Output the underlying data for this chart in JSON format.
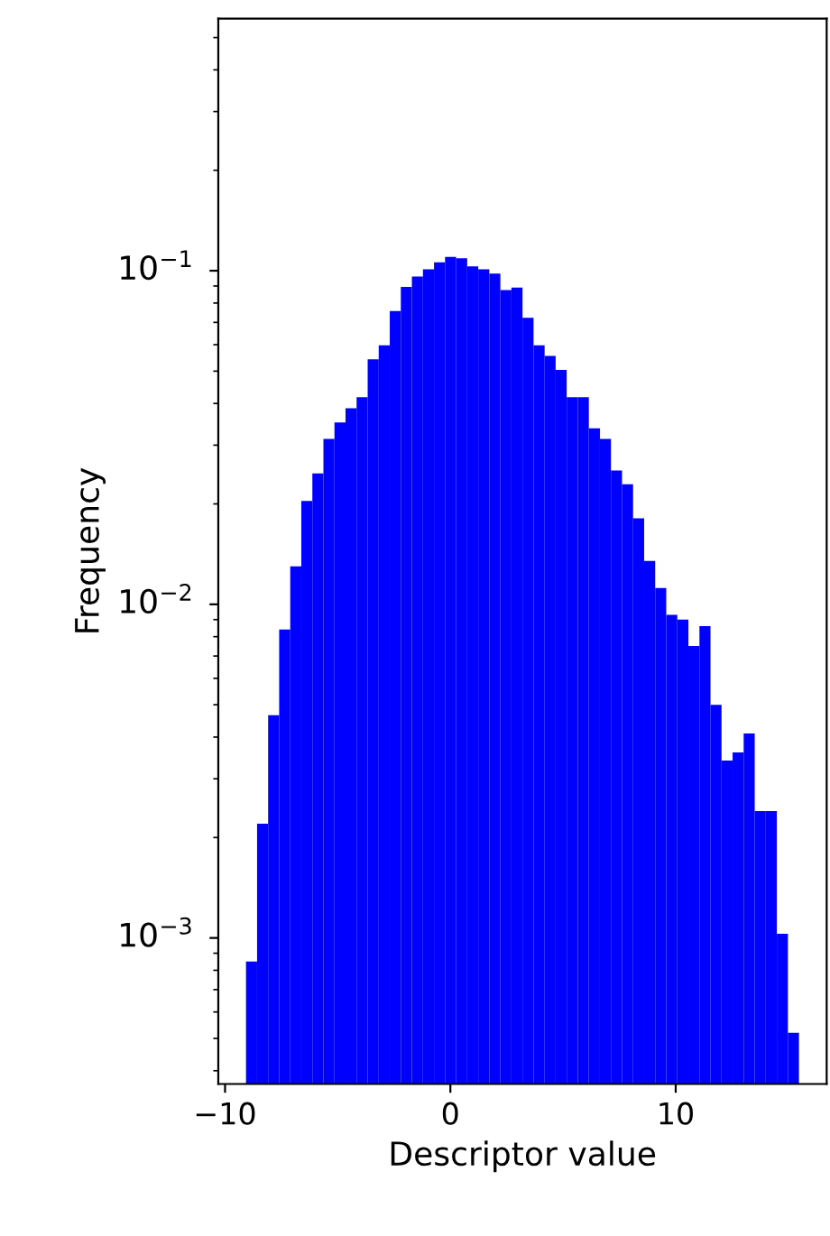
{
  "chart_data": {
    "type": "histogram",
    "xlabel": "Descriptor value",
    "ylabel": "Frequency",
    "color": "#0000ff",
    "log": "y",
    "grid": false,
    "bins": [
      -9.07,
      -8.579,
      -8.088,
      -7.598,
      -7.107,
      -6.616,
      -6.125,
      -5.634,
      -5.144,
      -4.653,
      -4.162,
      -3.671,
      -3.18,
      -2.69,
      -2.199,
      -1.708,
      -1.217,
      -0.726,
      -0.236,
      0.255,
      0.746,
      1.237,
      1.728,
      2.218,
      2.709,
      3.2,
      3.691,
      4.182,
      4.672,
      5.163,
      5.654,
      6.145,
      6.636,
      7.126,
      7.617,
      8.108,
      8.599,
      9.09,
      9.58,
      10.071,
      10.562,
      11.053,
      11.544,
      12.034,
      12.525,
      13.016,
      13.507,
      13.998,
      14.488,
      14.979,
      15.47
    ],
    "values": [
      0.00085,
      0.0022,
      0.00465,
      0.0084,
      0.013,
      0.0204,
      0.0247,
      0.0313,
      0.0351,
      0.0387,
      0.0418,
      0.0543,
      0.0598,
      0.0757,
      0.0894,
      0.096,
      0.101,
      0.106,
      0.11,
      0.109,
      0.103,
      0.101,
      0.098,
      0.0875,
      0.089,
      0.0723,
      0.0598,
      0.0555,
      0.0504,
      0.0418,
      0.0418,
      0.0337,
      0.0313,
      0.0252,
      0.0229,
      0.0181,
      0.0135,
      0.0112,
      0.0093,
      0.009,
      0.0075,
      0.0086,
      0.005,
      0.0034,
      0.0036,
      0.0041,
      0.0024,
      0.0024,
      0.00103,
      0.00052
    ],
    "xlim": [
      -10.3,
      16.7
    ],
    "ylim": [
      0.000365,
      0.57
    ],
    "xticks": [
      {
        "value": -10,
        "label": "−10"
      },
      0,
      10
    ],
    "yticks": [
      {
        "value": 0.001,
        "label": "10$^{−3}$"
      },
      {
        "value": 0.01,
        "label": "10$^{−2}$"
      },
      {
        "value": 0.1,
        "label": "10$^{−1}$"
      }
    ]
  }
}
